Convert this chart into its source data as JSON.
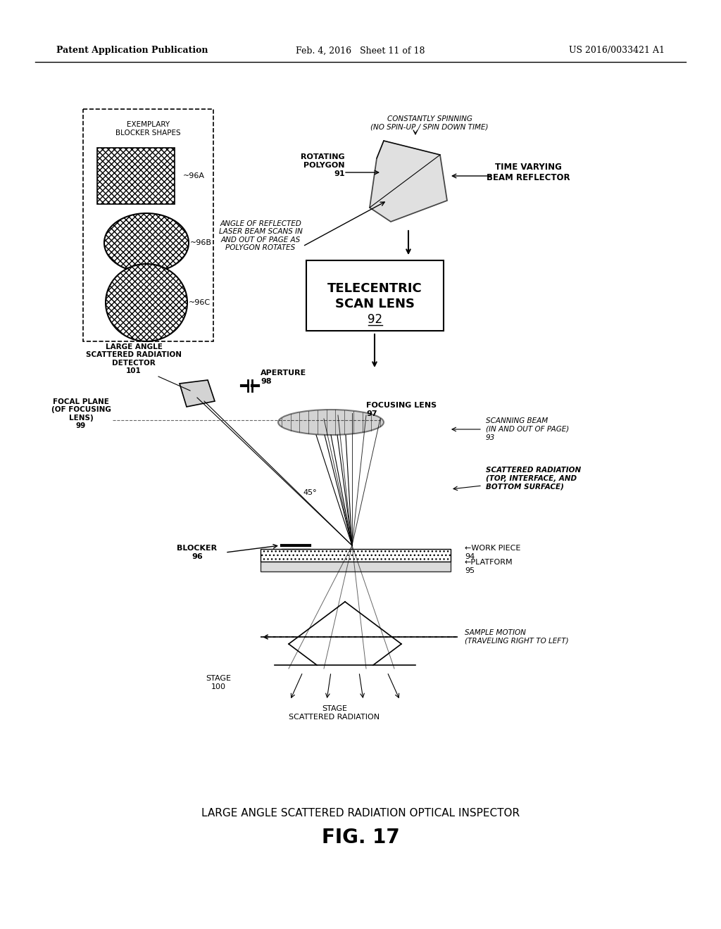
{
  "bg_color": "#ffffff",
  "text_color": "#000000",
  "header_left": "Patent Application Publication",
  "header_mid": "Feb. 4, 2016   Sheet 11 of 18",
  "header_right": "US 2016/0033421 A1",
  "title_main": "LARGE ANGLE SCATTERED RADIATION OPTICAL INSPECTOR",
  "title_fig": "FIG. 17",
  "blocker_box_label": "EXEMPLARY\nBLOCKER SHAPES",
  "label_96A": "~96A",
  "label_96B": "~96B",
  "label_96C": "~96C",
  "label_rotating_polygon": "ROTATING\nPOLYGON\n91",
  "label_constantly_spinning": "CONSTANTLY SPINNING\n(NO SPIN-UP / SPIN DOWN TIME)",
  "label_time_varying": "TIME VARYING\nBEAM REFLECTOR",
  "label_angle": "ANGLE OF REFLECTED\nLASER BEAM SCANS IN\nAND OUT OF PAGE AS\nPOLYGON ROTATES",
  "label_telecentric": "TELECENTRIC\nSCAN LENS\n92",
  "label_large_angle": "LARGE ANGLE\nSCATTERED RADIATION\nDETECTOR\n101",
  "label_aperture": "APERTURE\n98",
  "label_focal_plane": "FOCAL PLANE\n(OF FOCUSING\nLENS)\n99",
  "label_focusing_lens": "FOCUSING LENS\n97",
  "label_scanning_beam": "SCANNING BEAM\n(IN AND OUT OF PAGE)\n93",
  "label_scattered_radiation": "SCATTERED RADIATION\n(TOP, INTERFACE, AND\nBOTTOM SURFACE)",
  "label_45": "45°",
  "label_blocker": "BLOCKER\n96",
  "label_work_piece": "←WORK PIECE\n94",
  "label_platform": "←PLATFORM\n95",
  "label_stage_100": "STAGE\n100",
  "label_stage_scattered": "STAGE\nSCATTERED RADIATION",
  "label_sample_motion": "SAMPLE MOTION\n(TRAVELING RIGHT TO LEFT)"
}
